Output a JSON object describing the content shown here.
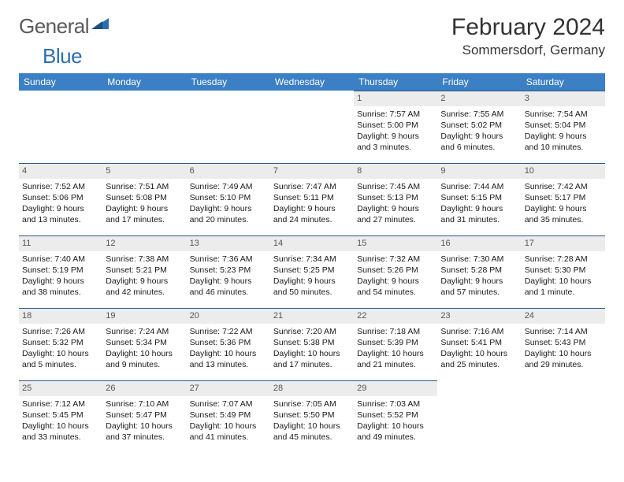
{
  "logo": {
    "part1": "General",
    "part2": "Blue"
  },
  "title": "February 2024",
  "location": "Sommersdorf, Germany",
  "colors": {
    "header_bg": "#3b7fc4",
    "header_text": "#ffffff",
    "daynum_bg": "#ececec",
    "daynum_border": "#2b5a8a",
    "logo_gray": "#5a5a5a",
    "logo_blue": "#2b6fb0"
  },
  "day_names": [
    "Sunday",
    "Monday",
    "Tuesday",
    "Wednesday",
    "Thursday",
    "Friday",
    "Saturday"
  ],
  "weeks": [
    [
      null,
      null,
      null,
      null,
      {
        "n": "1",
        "sunrise": "Sunrise: 7:57 AM",
        "sunset": "Sunset: 5:00 PM",
        "day1": "Daylight: 9 hours",
        "day2": "and 3 minutes."
      },
      {
        "n": "2",
        "sunrise": "Sunrise: 7:55 AM",
        "sunset": "Sunset: 5:02 PM",
        "day1": "Daylight: 9 hours",
        "day2": "and 6 minutes."
      },
      {
        "n": "3",
        "sunrise": "Sunrise: 7:54 AM",
        "sunset": "Sunset: 5:04 PM",
        "day1": "Daylight: 9 hours",
        "day2": "and 10 minutes."
      }
    ],
    [
      {
        "n": "4",
        "sunrise": "Sunrise: 7:52 AM",
        "sunset": "Sunset: 5:06 PM",
        "day1": "Daylight: 9 hours",
        "day2": "and 13 minutes."
      },
      {
        "n": "5",
        "sunrise": "Sunrise: 7:51 AM",
        "sunset": "Sunset: 5:08 PM",
        "day1": "Daylight: 9 hours",
        "day2": "and 17 minutes."
      },
      {
        "n": "6",
        "sunrise": "Sunrise: 7:49 AM",
        "sunset": "Sunset: 5:10 PM",
        "day1": "Daylight: 9 hours",
        "day2": "and 20 minutes."
      },
      {
        "n": "7",
        "sunrise": "Sunrise: 7:47 AM",
        "sunset": "Sunset: 5:11 PM",
        "day1": "Daylight: 9 hours",
        "day2": "and 24 minutes."
      },
      {
        "n": "8",
        "sunrise": "Sunrise: 7:45 AM",
        "sunset": "Sunset: 5:13 PM",
        "day1": "Daylight: 9 hours",
        "day2": "and 27 minutes."
      },
      {
        "n": "9",
        "sunrise": "Sunrise: 7:44 AM",
        "sunset": "Sunset: 5:15 PM",
        "day1": "Daylight: 9 hours",
        "day2": "and 31 minutes."
      },
      {
        "n": "10",
        "sunrise": "Sunrise: 7:42 AM",
        "sunset": "Sunset: 5:17 PM",
        "day1": "Daylight: 9 hours",
        "day2": "and 35 minutes."
      }
    ],
    [
      {
        "n": "11",
        "sunrise": "Sunrise: 7:40 AM",
        "sunset": "Sunset: 5:19 PM",
        "day1": "Daylight: 9 hours",
        "day2": "and 38 minutes."
      },
      {
        "n": "12",
        "sunrise": "Sunrise: 7:38 AM",
        "sunset": "Sunset: 5:21 PM",
        "day1": "Daylight: 9 hours",
        "day2": "and 42 minutes."
      },
      {
        "n": "13",
        "sunrise": "Sunrise: 7:36 AM",
        "sunset": "Sunset: 5:23 PM",
        "day1": "Daylight: 9 hours",
        "day2": "and 46 minutes."
      },
      {
        "n": "14",
        "sunrise": "Sunrise: 7:34 AM",
        "sunset": "Sunset: 5:25 PM",
        "day1": "Daylight: 9 hours",
        "day2": "and 50 minutes."
      },
      {
        "n": "15",
        "sunrise": "Sunrise: 7:32 AM",
        "sunset": "Sunset: 5:26 PM",
        "day1": "Daylight: 9 hours",
        "day2": "and 54 minutes."
      },
      {
        "n": "16",
        "sunrise": "Sunrise: 7:30 AM",
        "sunset": "Sunset: 5:28 PM",
        "day1": "Daylight: 9 hours",
        "day2": "and 57 minutes."
      },
      {
        "n": "17",
        "sunrise": "Sunrise: 7:28 AM",
        "sunset": "Sunset: 5:30 PM",
        "day1": "Daylight: 10 hours",
        "day2": "and 1 minute."
      }
    ],
    [
      {
        "n": "18",
        "sunrise": "Sunrise: 7:26 AM",
        "sunset": "Sunset: 5:32 PM",
        "day1": "Daylight: 10 hours",
        "day2": "and 5 minutes."
      },
      {
        "n": "19",
        "sunrise": "Sunrise: 7:24 AM",
        "sunset": "Sunset: 5:34 PM",
        "day1": "Daylight: 10 hours",
        "day2": "and 9 minutes."
      },
      {
        "n": "20",
        "sunrise": "Sunrise: 7:22 AM",
        "sunset": "Sunset: 5:36 PM",
        "day1": "Daylight: 10 hours",
        "day2": "and 13 minutes."
      },
      {
        "n": "21",
        "sunrise": "Sunrise: 7:20 AM",
        "sunset": "Sunset: 5:38 PM",
        "day1": "Daylight: 10 hours",
        "day2": "and 17 minutes."
      },
      {
        "n": "22",
        "sunrise": "Sunrise: 7:18 AM",
        "sunset": "Sunset: 5:39 PM",
        "day1": "Daylight: 10 hours",
        "day2": "and 21 minutes."
      },
      {
        "n": "23",
        "sunrise": "Sunrise: 7:16 AM",
        "sunset": "Sunset: 5:41 PM",
        "day1": "Daylight: 10 hours",
        "day2": "and 25 minutes."
      },
      {
        "n": "24",
        "sunrise": "Sunrise: 7:14 AM",
        "sunset": "Sunset: 5:43 PM",
        "day1": "Daylight: 10 hours",
        "day2": "and 29 minutes."
      }
    ],
    [
      {
        "n": "25",
        "sunrise": "Sunrise: 7:12 AM",
        "sunset": "Sunset: 5:45 PM",
        "day1": "Daylight: 10 hours",
        "day2": "and 33 minutes."
      },
      {
        "n": "26",
        "sunrise": "Sunrise: 7:10 AM",
        "sunset": "Sunset: 5:47 PM",
        "day1": "Daylight: 10 hours",
        "day2": "and 37 minutes."
      },
      {
        "n": "27",
        "sunrise": "Sunrise: 7:07 AM",
        "sunset": "Sunset: 5:49 PM",
        "day1": "Daylight: 10 hours",
        "day2": "and 41 minutes."
      },
      {
        "n": "28",
        "sunrise": "Sunrise: 7:05 AM",
        "sunset": "Sunset: 5:50 PM",
        "day1": "Daylight: 10 hours",
        "day2": "and 45 minutes."
      },
      {
        "n": "29",
        "sunrise": "Sunrise: 7:03 AM",
        "sunset": "Sunset: 5:52 PM",
        "day1": "Daylight: 10 hours",
        "day2": "and 49 minutes."
      },
      null,
      null
    ]
  ]
}
